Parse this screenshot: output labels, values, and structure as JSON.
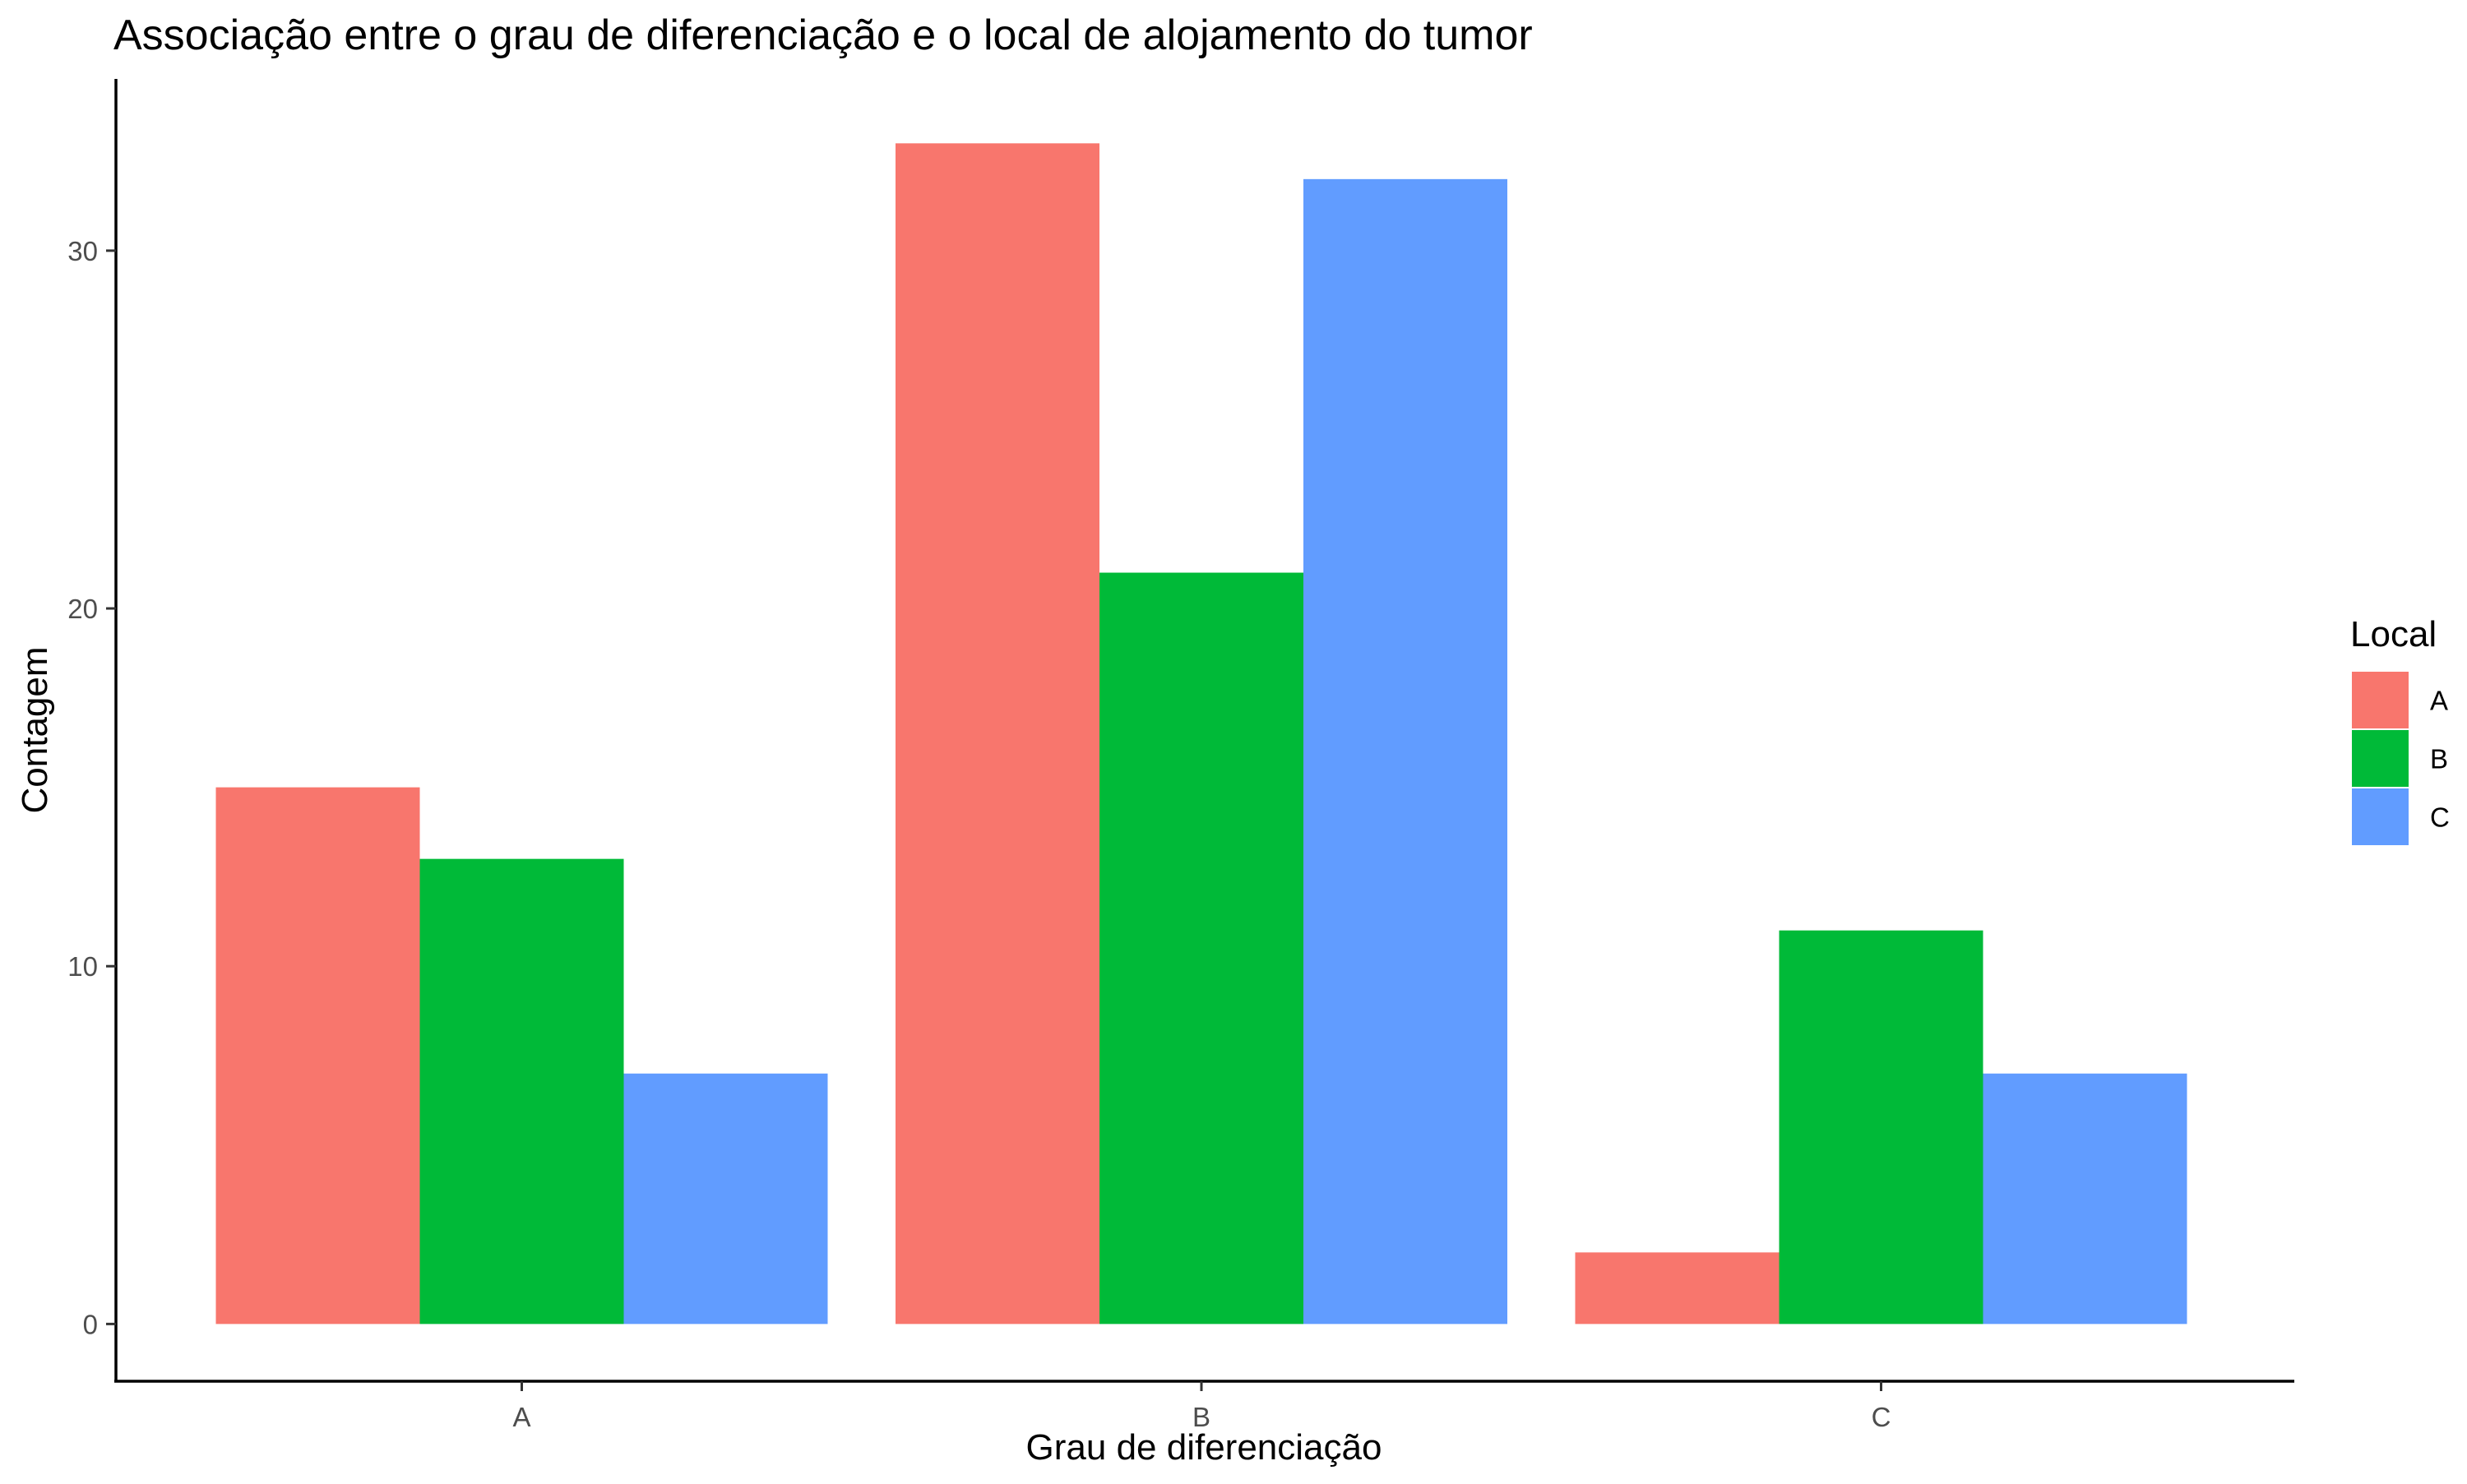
{
  "chart_data": {
    "type": "bar",
    "title": "Associação entre o grau de diferenciação e o local de alojamento do tumor",
    "xlabel": "Grau de diferenciação",
    "ylabel": "Contagem",
    "categories": [
      "A",
      "B",
      "C"
    ],
    "series": [
      {
        "name": "A",
        "color": "#F8766D",
        "values": [
          15,
          33,
          2
        ]
      },
      {
        "name": "B",
        "color": "#00BA38",
        "values": [
          13,
          21,
          11
        ]
      },
      {
        "name": "C",
        "color": "#619CFF",
        "values": [
          7,
          32,
          7
        ]
      }
    ],
    "ylim": [
      -1.6,
      34.8
    ],
    "yticks": [
      0,
      10,
      20,
      30
    ],
    "ytick_labels": [
      "0",
      "10",
      "20",
      "30"
    ],
    "grid": false,
    "legend": {
      "title": "Local",
      "position": "right"
    }
  }
}
